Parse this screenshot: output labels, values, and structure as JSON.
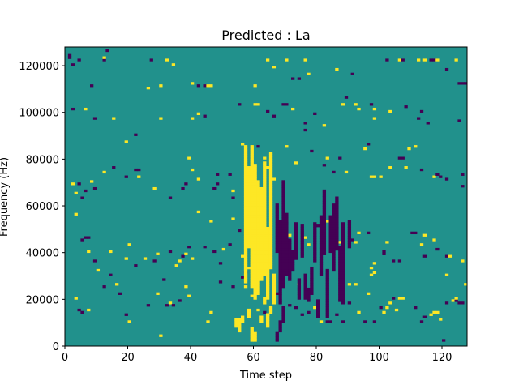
{
  "chart_data": {
    "type": "heatmap",
    "title": "Predicted : La",
    "xlabel": "Time step",
    "ylabel": "Frequency (Hz)",
    "xlim": [
      0,
      128
    ],
    "ylim": [
      0,
      128000
    ],
    "x_ticks": [
      0,
      20,
      40,
      60,
      80,
      100,
      120
    ],
    "y_ticks": [
      0,
      20000,
      40000,
      60000,
      80000,
      100000,
      120000
    ],
    "x_tick_labels": [
      "0",
      "20",
      "40",
      "60",
      "80",
      "100",
      "120"
    ],
    "y_tick_labels": [
      "0",
      "20000",
      "40000",
      "60000",
      "80000",
      "100000",
      "120000"
    ],
    "grid": false,
    "levels": {
      "low": -1,
      "mid": 0,
      "high": 1
    },
    "colors": {
      "low": "#440154",
      "mid": "#21918c",
      "high": "#fde725"
    },
    "background_level": 0,
    "cells_note_format": "[time_step, frequency_bin(0-127, 1000 Hz each), level]",
    "cells": [
      [
        1,
        124,
        -1
      ],
      [
        1,
        123,
        -1
      ],
      [
        2,
        120,
        -1
      ],
      [
        4,
        122,
        -1
      ],
      [
        12,
        122,
        -1
      ],
      [
        12,
        123,
        1
      ],
      [
        13,
        126,
        -1
      ],
      [
        27,
        122,
        -1
      ],
      [
        32,
        122,
        1
      ],
      [
        34,
        120,
        1
      ],
      [
        2,
        101,
        -1
      ],
      [
        8,
        111,
        -1
      ],
      [
        26,
        110,
        1
      ],
      [
        30,
        111,
        1
      ],
      [
        40,
        112,
        1
      ],
      [
        42,
        111,
        -1
      ],
      [
        44,
        111,
        -1
      ],
      [
        45,
        111,
        1
      ],
      [
        46,
        111,
        1
      ],
      [
        60,
        111,
        1
      ],
      [
        64,
        122,
        1
      ],
      [
        70,
        122,
        1
      ],
      [
        66,
        119,
        1
      ],
      [
        72,
        114,
        -1
      ],
      [
        74,
        114,
        -1
      ],
      [
        76,
        122,
        1
      ],
      [
        77,
        116,
        1
      ],
      [
        86,
        118,
        1
      ],
      [
        91,
        116,
        -1
      ],
      [
        102,
        122,
        -1
      ],
      [
        106,
        122,
        1
      ],
      [
        107,
        122,
        -1
      ],
      [
        112,
        122,
        1
      ],
      [
        114,
        122,
        1
      ],
      [
        116,
        122,
        -1
      ],
      [
        117,
        122,
        -1
      ],
      [
        118,
        122,
        1
      ],
      [
        121,
        118,
        -1
      ],
      [
        124,
        122,
        1
      ],
      [
        125,
        112,
        -1
      ],
      [
        126,
        112,
        -1
      ],
      [
        127,
        112,
        -1
      ],
      [
        6,
        101,
        1
      ],
      [
        9,
        97,
        -1
      ],
      [
        15,
        97,
        1
      ],
      [
        19,
        87,
        1
      ],
      [
        22,
        90,
        -1
      ],
      [
        30,
        97,
        1
      ],
      [
        40,
        97,
        1
      ],
      [
        42,
        99,
        1
      ],
      [
        44,
        98,
        -1
      ],
      [
        55,
        103,
        -1
      ],
      [
        60,
        103,
        1
      ],
      [
        61,
        103,
        1
      ],
      [
        64,
        100,
        -1
      ],
      [
        66,
        98,
        -1
      ],
      [
        69,
        103,
        -1
      ],
      [
        70,
        103,
        -1
      ],
      [
        72,
        101,
        1
      ],
      [
        76,
        95,
        -1
      ],
      [
        76,
        92,
        -1
      ],
      [
        79,
        99,
        -1
      ],
      [
        82,
        94,
        1
      ],
      [
        88,
        103,
        1
      ],
      [
        89,
        106,
        -1
      ],
      [
        92,
        103,
        1
      ],
      [
        93,
        101,
        1
      ],
      [
        97,
        103,
        -1
      ],
      [
        98,
        101,
        1
      ],
      [
        98,
        97,
        1
      ],
      [
        103,
        100,
        1
      ],
      [
        108,
        102,
        -1
      ],
      [
        112,
        97,
        -1
      ],
      [
        113,
        100,
        -1
      ],
      [
        115,
        95,
        -1
      ],
      [
        125,
        96,
        -1
      ],
      [
        2,
        69,
        1
      ],
      [
        3,
        65,
        1
      ],
      [
        4,
        69,
        -1
      ],
      [
        5,
        63,
        -1
      ],
      [
        6,
        66,
        -1
      ],
      [
        8,
        70,
        1
      ],
      [
        9,
        67,
        -1
      ],
      [
        12,
        74,
        1
      ],
      [
        15,
        76,
        -1
      ],
      [
        19,
        72,
        -1
      ],
      [
        22,
        75,
        -1
      ],
      [
        23,
        75,
        -1
      ],
      [
        23,
        72,
        1
      ],
      [
        28,
        67,
        1
      ],
      [
        33,
        63,
        -1
      ],
      [
        37,
        67,
        -1
      ],
      [
        38,
        69,
        -1
      ],
      [
        39,
        80,
        1
      ],
      [
        40,
        75,
        1
      ],
      [
        42,
        71,
        1
      ],
      [
        47,
        67,
        -1
      ],
      [
        48,
        73,
        -1
      ],
      [
        48,
        69,
        -1
      ],
      [
        52,
        73,
        -1
      ],
      [
        53,
        66,
        1
      ],
      [
        53,
        63,
        -1
      ],
      [
        56,
        86,
        1
      ],
      [
        61,
        85,
        -1
      ],
      [
        63,
        80,
        1
      ],
      [
        64,
        76,
        1
      ],
      [
        66,
        71,
        1
      ],
      [
        70,
        85,
        1
      ],
      [
        73,
        78,
        1
      ],
      [
        78,
        83,
        -1
      ],
      [
        82,
        77,
        -1
      ],
      [
        83,
        80,
        1
      ],
      [
        85,
        74,
        -1
      ],
      [
        87,
        80,
        -1
      ],
      [
        89,
        74,
        1
      ],
      [
        95,
        84,
        1
      ],
      [
        96,
        86,
        -1
      ],
      [
        97,
        72,
        1
      ],
      [
        98,
        72,
        1
      ],
      [
        100,
        72,
        1
      ],
      [
        103,
        76,
        1
      ],
      [
        106,
        80,
        -1
      ],
      [
        107,
        80,
        -1
      ],
      [
        108,
        76,
        1
      ],
      [
        109,
        84,
        1
      ],
      [
        111,
        85,
        1
      ],
      [
        113,
        75,
        -1
      ],
      [
        117,
        72,
        1
      ],
      [
        118,
        73,
        -1
      ],
      [
        119,
        72,
        -1
      ],
      [
        121,
        71,
        -1
      ],
      [
        126,
        73,
        -1
      ],
      [
        126,
        68,
        -1
      ],
      [
        3,
        56,
        1
      ],
      [
        5,
        45,
        -1
      ],
      [
        6,
        46,
        -1
      ],
      [
        7,
        46,
        -1
      ],
      [
        7,
        40,
        1
      ],
      [
        9,
        36,
        -1
      ],
      [
        10,
        32,
        1
      ],
      [
        14,
        40,
        1
      ],
      [
        14,
        30,
        -1
      ],
      [
        19,
        37,
        1
      ],
      [
        20,
        43,
        1
      ],
      [
        22,
        34,
        -1
      ],
      [
        25,
        37,
        1
      ],
      [
        28,
        36,
        -1
      ],
      [
        29,
        39,
        1
      ],
      [
        31,
        28,
        -1
      ],
      [
        33,
        40,
        -1
      ],
      [
        35,
        34,
        1
      ],
      [
        36,
        36,
        1
      ],
      [
        37,
        38,
        -1
      ],
      [
        38,
        39,
        1
      ],
      [
        39,
        42,
        -1
      ],
      [
        40,
        37,
        1
      ],
      [
        42,
        57,
        1
      ],
      [
        44,
        42,
        -1
      ],
      [
        46,
        53,
        1
      ],
      [
        47,
        40,
        -1
      ],
      [
        49,
        35,
        -1
      ],
      [
        50,
        41,
        1
      ],
      [
        52,
        43,
        -1
      ],
      [
        53,
        54,
        1
      ],
      [
        55,
        49,
        -1
      ],
      [
        56,
        38,
        1
      ],
      [
        57,
        31,
        -1
      ],
      [
        58,
        33,
        1
      ],
      [
        60,
        45,
        1
      ],
      [
        70,
        52,
        -1
      ],
      [
        71,
        47,
        1
      ],
      [
        73,
        44,
        -1
      ],
      [
        76,
        46,
        1
      ],
      [
        77,
        43,
        1
      ],
      [
        80,
        51,
        -1
      ],
      [
        83,
        53,
        1
      ],
      [
        85,
        48,
        -1
      ],
      [
        86,
        50,
        -1
      ],
      [
        87,
        44,
        1
      ],
      [
        88,
        44,
        1
      ],
      [
        88,
        34,
        1
      ],
      [
        91,
        45,
        -1
      ],
      [
        92,
        44,
        1
      ],
      [
        93,
        48,
        1
      ],
      [
        96,
        48,
        -1
      ],
      [
        97,
        33,
        1
      ],
      [
        98,
        31,
        1
      ],
      [
        101,
        40,
        -1
      ],
      [
        102,
        44,
        1
      ],
      [
        104,
        36,
        -1
      ],
      [
        106,
        36,
        -1
      ],
      [
        110,
        48,
        -1
      ],
      [
        111,
        48,
        -1
      ],
      [
        113,
        43,
        1
      ],
      [
        114,
        47,
        1
      ],
      [
        114,
        38,
        -1
      ],
      [
        117,
        45,
        1
      ],
      [
        118,
        41,
        -1
      ],
      [
        121,
        38,
        -1
      ],
      [
        122,
        38,
        1
      ],
      [
        126,
        36,
        1
      ],
      [
        3,
        20,
        1
      ],
      [
        4,
        15,
        -1
      ],
      [
        5,
        14,
        -1
      ],
      [
        7,
        15,
        1
      ],
      [
        12,
        25,
        -1
      ],
      [
        16,
        26,
        1
      ],
      [
        17,
        22,
        -1
      ],
      [
        19,
        13,
        -1
      ],
      [
        20,
        10,
        1
      ],
      [
        26,
        17,
        -1
      ],
      [
        29,
        22,
        1
      ],
      [
        30,
        4,
        1
      ],
      [
        32,
        17,
        -1
      ],
      [
        33,
        18,
        1
      ],
      [
        34,
        17,
        -1
      ],
      [
        36,
        19,
        -1
      ],
      [
        38,
        25,
        1
      ],
      [
        39,
        21,
        1
      ],
      [
        45,
        10,
        1
      ],
      [
        46,
        14,
        1
      ],
      [
        49,
        27,
        -1
      ],
      [
        53,
        25,
        -1
      ],
      [
        56,
        29,
        -1
      ],
      [
        57,
        25,
        1
      ],
      [
        59,
        21,
        1
      ],
      [
        61,
        15,
        1
      ],
      [
        63,
        14,
        -1
      ],
      [
        64,
        13,
        1
      ],
      [
        67,
        22,
        -1
      ],
      [
        69,
        27,
        -1
      ],
      [
        71,
        17,
        -1
      ],
      [
        73,
        16,
        -1
      ],
      [
        74,
        26,
        1
      ],
      [
        75,
        13,
        -1
      ],
      [
        77,
        14,
        -1
      ],
      [
        79,
        16,
        1
      ],
      [
        80,
        13,
        -1
      ],
      [
        81,
        10,
        1
      ],
      [
        83,
        10,
        -1
      ],
      [
        84,
        10,
        -1
      ],
      [
        86,
        13,
        -1
      ],
      [
        88,
        10,
        -1
      ],
      [
        90,
        18,
        -1
      ],
      [
        93,
        14,
        1
      ],
      [
        95,
        10,
        -1
      ],
      [
        98,
        10,
        -1
      ],
      [
        100,
        16,
        -1
      ],
      [
        101,
        14,
        1
      ],
      [
        103,
        18,
        1
      ],
      [
        104,
        20,
        -1
      ],
      [
        106,
        20,
        1
      ],
      [
        107,
        20,
        1
      ],
      [
        111,
        16,
        -1
      ],
      [
        113,
        10,
        -1
      ],
      [
        114,
        12,
        -1
      ],
      [
        116,
        13,
        1
      ],
      [
        117,
        14,
        1
      ],
      [
        118,
        14,
        1
      ],
      [
        119,
        11,
        1
      ],
      [
        120,
        2,
        -1
      ],
      [
        121,
        18,
        -1
      ],
      [
        123,
        19,
        1
      ],
      [
        124,
        19,
        -1
      ],
      [
        125,
        18,
        -1
      ],
      [
        126,
        18,
        -1
      ],
      [
        127,
        26,
        1
      ],
      [
        90,
        26,
        1
      ],
      [
        92,
        26,
        1
      ],
      [
        96,
        22,
        1
      ],
      [
        97,
        30,
        1
      ],
      [
        98,
        35,
        1
      ],
      [
        101,
        39,
        -1
      ],
      [
        102,
        16,
        1
      ],
      [
        105,
        15,
        1
      ],
      [
        124,
        20,
        1
      ],
      [
        121,
        30,
        1
      ]
    ],
    "streaks": [
      [
        57,
        27,
        85,
        1
      ],
      [
        58,
        42,
        76,
        1
      ],
      [
        59,
        25,
        85,
        1
      ],
      [
        60,
        20,
        77,
        1
      ],
      [
        61,
        22,
        70,
        1
      ],
      [
        62,
        28,
        67,
        1
      ],
      [
        63,
        30,
        78,
        1
      ],
      [
        64,
        20,
        50,
        1
      ],
      [
        65,
        33,
        82,
        1
      ],
      [
        66,
        18,
        30,
        1
      ],
      [
        67,
        40,
        60,
        -1
      ],
      [
        68,
        18,
        53,
        -1
      ],
      [
        69,
        25,
        70,
        -1
      ],
      [
        70,
        30,
        56,
        -1
      ],
      [
        71,
        28,
        45,
        -1
      ],
      [
        72,
        32,
        40,
        -1
      ],
      [
        73,
        37,
        52,
        -1
      ],
      [
        74,
        20,
        28,
        -1
      ],
      [
        75,
        38,
        51,
        -1
      ],
      [
        76,
        20,
        30,
        -1
      ],
      [
        77,
        19,
        24,
        -1
      ],
      [
        78,
        22,
        33,
        -1
      ],
      [
        79,
        36,
        52,
        -1
      ],
      [
        80,
        12,
        19,
        -1
      ],
      [
        81,
        30,
        55,
        -1
      ],
      [
        82,
        39,
        66,
        -1
      ],
      [
        83,
        12,
        32,
        -1
      ],
      [
        84,
        40,
        55,
        -1
      ],
      [
        85,
        32,
        60,
        -1
      ],
      [
        86,
        41,
        63,
        -1
      ],
      [
        87,
        19,
        42,
        -1
      ],
      [
        88,
        18,
        52,
        -1
      ],
      [
        90,
        42,
        53,
        -1
      ],
      [
        54,
        8,
        11,
        1
      ],
      [
        55,
        6,
        11,
        1
      ],
      [
        56,
        10,
        12,
        1
      ],
      [
        58,
        12,
        15,
        1
      ],
      [
        59,
        2,
        7,
        1
      ],
      [
        60,
        2,
        5,
        1
      ],
      [
        62,
        10,
        12,
        1
      ],
      [
        66,
        22,
        27,
        1
      ],
      [
        63,
        18,
        20,
        1
      ],
      [
        64,
        8,
        13,
        1
      ],
      [
        65,
        14,
        16,
        1
      ],
      [
        67,
        2,
        5,
        -1
      ],
      [
        68,
        6,
        10,
        -1
      ],
      [
        69,
        10,
        16,
        -1
      ],
      [
        70,
        38,
        45,
        -1
      ]
    ]
  }
}
